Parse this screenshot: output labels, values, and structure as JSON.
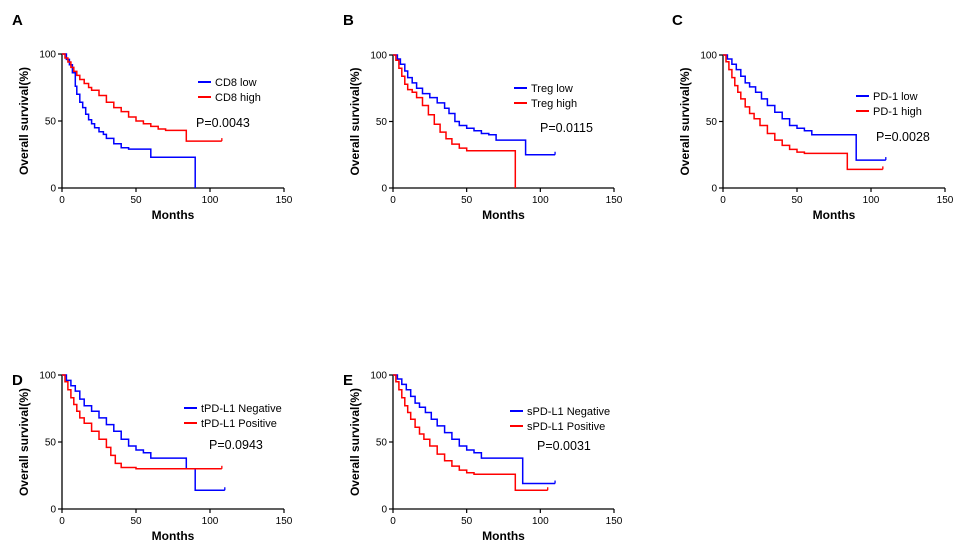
{
  "chart_data": [
    {
      "type": "line",
      "panel": "A",
      "title": "",
      "xlabel": "Months",
      "ylabel": "Overall survival(%)",
      "xlim": [
        0,
        150
      ],
      "ylim": [
        0,
        100
      ],
      "xticks": [
        0,
        50,
        100,
        150
      ],
      "yticks": [
        0,
        50,
        100
      ],
      "legend_position": "top-right",
      "annotation": "P=0.0043",
      "series": [
        {
          "name": "CD8 low",
          "color": "#0000ff",
          "x": [
            0,
            3,
            5,
            7,
            9,
            10,
            12,
            14,
            16,
            18,
            20,
            22,
            25,
            28,
            30,
            35,
            40,
            45,
            50,
            55,
            60,
            70,
            80,
            88,
            90,
            90
          ],
          "y": [
            100,
            96,
            92,
            86,
            76,
            70,
            64,
            60,
            55,
            51,
            48,
            45,
            42,
            40,
            37,
            33,
            30,
            29,
            29,
            29,
            23,
            23,
            23,
            23,
            23,
            0
          ]
        },
        {
          "name": "CD8 high",
          "color": "#ff0000",
          "x": [
            0,
            2,
            4,
            6,
            8,
            10,
            12,
            15,
            18,
            20,
            25,
            30,
            35,
            40,
            45,
            50,
            55,
            60,
            65,
            70,
            75,
            80,
            84,
            84,
            100,
            108
          ],
          "y": [
            100,
            97,
            94,
            90,
            87,
            84,
            81,
            78,
            75,
            73,
            69,
            64,
            60,
            57,
            53,
            50,
            48,
            46,
            44,
            43,
            43,
            43,
            43,
            35,
            35,
            35
          ]
        }
      ]
    },
    {
      "type": "line",
      "panel": "B",
      "title": "",
      "xlabel": "Months",
      "ylabel": "Overall survival(%)",
      "xlim": [
        0,
        150
      ],
      "ylim": [
        0,
        100
      ],
      "xticks": [
        0,
        50,
        100,
        150
      ],
      "yticks": [
        0,
        50,
        100
      ],
      "legend_position": "top-right",
      "annotation": "P=0.0115",
      "series": [
        {
          "name": "Treg low",
          "color": "#0000ff",
          "x": [
            0,
            3,
            5,
            8,
            10,
            13,
            16,
            20,
            25,
            30,
            35,
            38,
            42,
            45,
            50,
            55,
            60,
            65,
            70,
            80,
            90,
            90,
            110
          ],
          "y": [
            100,
            97,
            93,
            88,
            83,
            79,
            75,
            71,
            68,
            64,
            60,
            56,
            50,
            47,
            45,
            43,
            41,
            40,
            36,
            36,
            36,
            25,
            25
          ]
        },
        {
          "name": "Treg high",
          "color": "#ff0000",
          "x": [
            0,
            2,
            4,
            6,
            8,
            10,
            13,
            16,
            20,
            24,
            28,
            32,
            36,
            40,
            45,
            50,
            60,
            70,
            83,
            83
          ],
          "y": [
            100,
            96,
            90,
            84,
            78,
            74,
            72,
            68,
            62,
            55,
            48,
            42,
            37,
            33,
            30,
            28,
            28,
            28,
            28,
            0
          ]
        }
      ]
    },
    {
      "type": "line",
      "panel": "C",
      "title": "",
      "xlabel": "Months",
      "ylabel": "Overall survival(%)",
      "xlim": [
        0,
        150
      ],
      "ylim": [
        0,
        100
      ],
      "xticks": [
        0,
        50,
        100,
        150
      ],
      "yticks": [
        0,
        50,
        100
      ],
      "legend_position": "top-right",
      "annotation": "P=0.0028",
      "series": [
        {
          "name": "PD-1 low",
          "color": "#0000ff",
          "x": [
            0,
            3,
            6,
            9,
            12,
            15,
            18,
            22,
            26,
            30,
            35,
            40,
            45,
            50,
            55,
            60,
            70,
            80,
            90,
            90,
            110
          ],
          "y": [
            100,
            97,
            93,
            89,
            84,
            79,
            76,
            72,
            67,
            62,
            57,
            52,
            47,
            45,
            43,
            40,
            40,
            40,
            40,
            21,
            21
          ]
        },
        {
          "name": "PD-1 high",
          "color": "#ff0000",
          "x": [
            0,
            2,
            4,
            6,
            8,
            10,
            12,
            15,
            18,
            21,
            25,
            30,
            35,
            40,
            45,
            50,
            55,
            60,
            70,
            80,
            84,
            84,
            108
          ],
          "y": [
            100,
            95,
            89,
            83,
            77,
            72,
            67,
            61,
            56,
            52,
            47,
            41,
            36,
            32,
            29,
            27,
            26,
            26,
            26,
            26,
            26,
            14,
            14
          ]
        }
      ]
    },
    {
      "type": "line",
      "panel": "D",
      "title": "",
      "xlabel": "Months",
      "ylabel": "Overall survival(%)",
      "xlim": [
        0,
        150
      ],
      "ylim": [
        0,
        100
      ],
      "xticks": [
        0,
        50,
        100,
        150
      ],
      "yticks": [
        0,
        50,
        100
      ],
      "legend_position": "top-right",
      "annotation": "P=0.0943",
      "series": [
        {
          "name": "tPD-L1 Negative",
          "color": "#0000ff",
          "x": [
            0,
            3,
            6,
            9,
            12,
            15,
            20,
            25,
            30,
            35,
            40,
            45,
            50,
            55,
            60,
            70,
            80,
            84,
            84,
            90,
            90,
            110
          ],
          "y": [
            100,
            96,
            92,
            88,
            82,
            77,
            73,
            68,
            63,
            58,
            52,
            47,
            44,
            42,
            38,
            38,
            38,
            38,
            30,
            30,
            14,
            14
          ]
        },
        {
          "name": "tPD-L1 Positive",
          "color": "#ff0000",
          "x": [
            0,
            2,
            4,
            6,
            8,
            10,
            12,
            15,
            20,
            25,
            30,
            33,
            36,
            40,
            50,
            60,
            70,
            80,
            90,
            108
          ],
          "y": [
            100,
            95,
            89,
            83,
            78,
            73,
            68,
            64,
            58,
            52,
            46,
            40,
            34,
            31,
            30,
            30,
            30,
            30,
            30,
            30
          ]
        }
      ]
    },
    {
      "type": "line",
      "panel": "E",
      "title": "",
      "xlabel": "Months",
      "ylabel": "Overall survival(%)",
      "xlim": [
        0,
        150
      ],
      "ylim": [
        0,
        100
      ],
      "xticks": [
        0,
        50,
        100,
        150
      ],
      "yticks": [
        0,
        50,
        100
      ],
      "legend_position": "top-right",
      "annotation": "P=0.0031",
      "series": [
        {
          "name": "sPD-L1 Negative",
          "color": "#0000ff",
          "x": [
            0,
            3,
            6,
            9,
            12,
            15,
            18,
            22,
            26,
            30,
            35,
            40,
            45,
            50,
            55,
            60,
            70,
            80,
            88,
            88,
            110
          ],
          "y": [
            100,
            97,
            93,
            89,
            84,
            79,
            76,
            72,
            67,
            62,
            57,
            52,
            47,
            44,
            42,
            38,
            38,
            38,
            38,
            19,
            19
          ]
        },
        {
          "name": "sPD-L1 Positive",
          "color": "#ff0000",
          "x": [
            0,
            2,
            4,
            6,
            8,
            10,
            12,
            15,
            18,
            21,
            25,
            30,
            35,
            40,
            45,
            50,
            55,
            60,
            70,
            83,
            83,
            105
          ],
          "y": [
            100,
            95,
            89,
            83,
            77,
            72,
            67,
            61,
            56,
            52,
            47,
            41,
            36,
            32,
            29,
            27,
            26,
            26,
            26,
            26,
            14,
            14
          ]
        }
      ]
    }
  ]
}
